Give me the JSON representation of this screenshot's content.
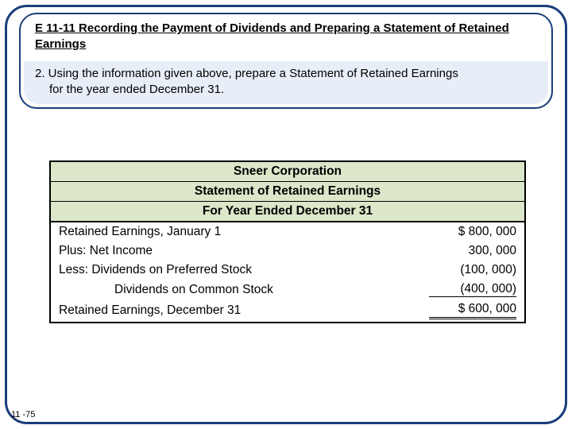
{
  "colors": {
    "border_navy": "#1a3d7a",
    "prompt_bg": "#e8eef7",
    "table_header_bg": "#dce6c9",
    "text": "#000000",
    "page_bg": "#ffffff"
  },
  "header": {
    "title": "E 11-11 Recording the Payment of Dividends and Preparing a Statement of Retained Earnings",
    "prompt_line1": "2. Using the information given above, prepare a Statement of Retained Earnings",
    "prompt_line2": "for the year ended December 31."
  },
  "statement": {
    "company": "Sneer Corporation",
    "name": "Statement of Retained Earnings",
    "period": "For Year Ended December 31",
    "rows": [
      {
        "label": "Retained Earnings, January 1",
        "value": "$  800, 000",
        "indent": 0,
        "style": "plain"
      },
      {
        "label": "Plus:   Net Income",
        "value": "300, 000",
        "indent": 0,
        "style": "plain"
      },
      {
        "label": "Less:  Dividends on Preferred Stock",
        "value": "(100, 000)",
        "indent": 0,
        "style": "plain"
      },
      {
        "label": "Dividends on Common Stock",
        "value": "(400, 000)",
        "indent": 2,
        "style": "single"
      },
      {
        "label": "Retained Earnings, December 31",
        "value": "$  600, 000",
        "indent": 0,
        "style": "double"
      }
    ]
  },
  "page_number": "11 -75"
}
